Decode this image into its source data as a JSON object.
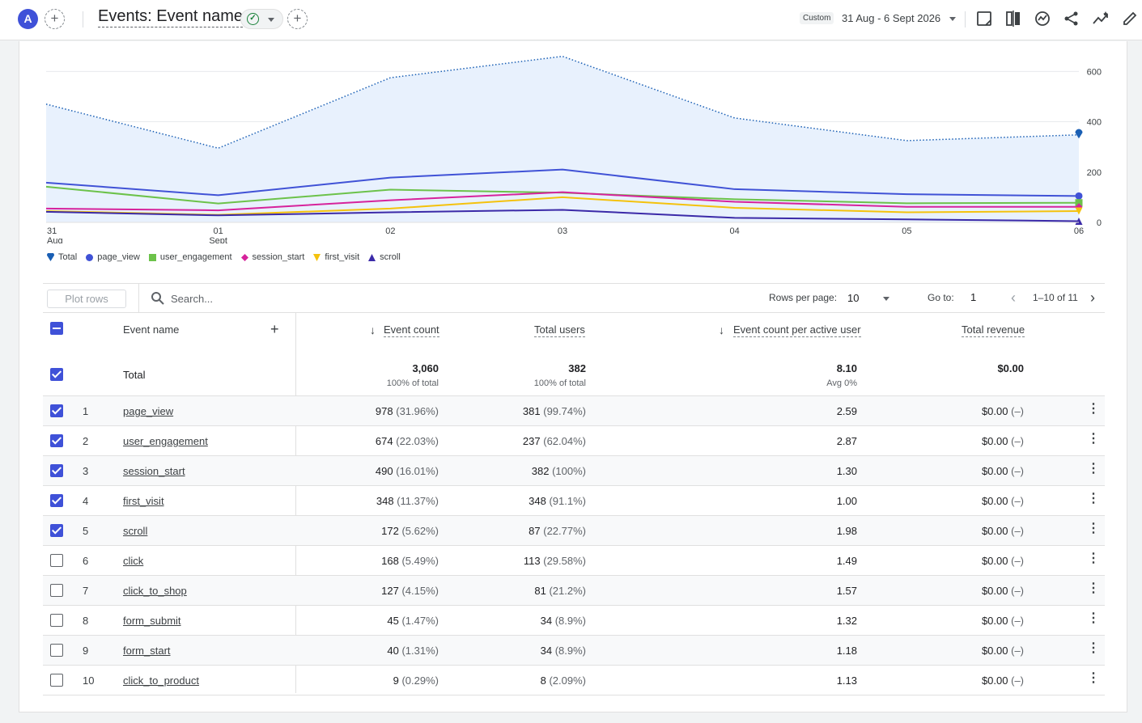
{
  "topbar": {
    "avatar_letter": "A",
    "add_comparison": "+",
    "title": "Events: Event name",
    "add_tab": "+",
    "date_chip": "Custom",
    "date_range": "31 Aug - 6 Sept 2026",
    "icons": [
      "report-notes-icon",
      "compare-icon",
      "insights-icon",
      "share-icon",
      "trending-icon",
      "edit-icon"
    ]
  },
  "chart_data": {
    "type": "line",
    "x": [
      "31 Aug",
      "01 Sept",
      "02",
      "03",
      "04",
      "05",
      "06"
    ],
    "x_tick_lines": [
      [
        "31",
        "Aug"
      ],
      [
        "01",
        "Sept"
      ],
      [
        "02"
      ],
      [
        "03"
      ],
      [
        "04"
      ],
      [
        "05"
      ],
      [
        "06"
      ]
    ],
    "y_ticks": [
      "0",
      "200",
      "400",
      "600"
    ],
    "ylim": [
      0,
      600
    ],
    "y_axis_side": "right",
    "grid": true,
    "legend_position": "bottom-left",
    "series": [
      {
        "name": "Total",
        "color": "#1a5fb4",
        "style": "dotted-area",
        "marker": "pin",
        "values": [
          470,
          295,
          575,
          660,
          415,
          325,
          348
        ]
      },
      {
        "name": "page_view",
        "color": "#4052d6",
        "style": "solid",
        "marker": "circle",
        "values": [
          158,
          108,
          178,
          210,
          132,
          112,
          105
        ]
      },
      {
        "name": "user_engagement",
        "color": "#6cc24a",
        "style": "solid",
        "marker": "square",
        "values": [
          142,
          75,
          130,
          118,
          92,
          76,
          78
        ]
      },
      {
        "name": "session_start",
        "color": "#d6239c",
        "style": "solid",
        "marker": "diamond",
        "values": [
          55,
          48,
          88,
          120,
          82,
          62,
          62
        ]
      },
      {
        "name": "first_visit",
        "color": "#f4c20d",
        "style": "solid",
        "marker": "triangle-down",
        "values": [
          45,
          30,
          55,
          100,
          58,
          40,
          45
        ]
      },
      {
        "name": "scroll",
        "color": "#3b2aa8",
        "style": "solid",
        "marker": "triangle-up",
        "values": [
          42,
          28,
          40,
          50,
          18,
          12,
          5
        ]
      }
    ]
  },
  "toolbar": {
    "plot_rows_label": "Plot rows",
    "search_placeholder": "Search...",
    "rows_per_page_label": "Rows per page:",
    "rows_per_page_value": "10",
    "goto_label": "Go to:",
    "goto_value": "1",
    "pagination": "1–10 of 11"
  },
  "table": {
    "dimension_header": "Event name",
    "metric_headers": [
      "Event count",
      "Total users",
      "Event count per active user",
      "Total revenue"
    ],
    "totals": {
      "label": "Total",
      "event_count": "3,060",
      "event_count_sub": "100% of total",
      "total_users": "382",
      "total_users_sub": "100% of total",
      "per_user": "8.10",
      "per_user_sub": "Avg 0%",
      "revenue": "$0.00"
    },
    "rows": [
      {
        "idx": "1",
        "name": "page_view",
        "count": "978",
        "count_pct": "(31.96%)",
        "users": "381",
        "users_pct": "(99.74%)",
        "per_user": "2.59",
        "revenue": "$0.00",
        "revenue_pct": "(–)",
        "checked": true
      },
      {
        "idx": "2",
        "name": "user_engagement",
        "count": "674",
        "count_pct": "(22.03%)",
        "users": "237",
        "users_pct": "(62.04%)",
        "per_user": "2.87",
        "revenue": "$0.00",
        "revenue_pct": "(–)",
        "checked": true
      },
      {
        "idx": "3",
        "name": "session_start",
        "count": "490",
        "count_pct": "(16.01%)",
        "users": "382",
        "users_pct": "(100%)",
        "per_user": "1.30",
        "revenue": "$0.00",
        "revenue_pct": "(–)",
        "checked": true
      },
      {
        "idx": "4",
        "name": "first_visit",
        "count": "348",
        "count_pct": "(11.37%)",
        "users": "348",
        "users_pct": "(91.1%)",
        "per_user": "1.00",
        "revenue": "$0.00",
        "revenue_pct": "(–)",
        "checked": true
      },
      {
        "idx": "5",
        "name": "scroll",
        "count": "172",
        "count_pct": "(5.62%)",
        "users": "87",
        "users_pct": "(22.77%)",
        "per_user": "1.98",
        "revenue": "$0.00",
        "revenue_pct": "(–)",
        "checked": true
      },
      {
        "idx": "6",
        "name": "click",
        "count": "168",
        "count_pct": "(5.49%)",
        "users": "113",
        "users_pct": "(29.58%)",
        "per_user": "1.49",
        "revenue": "$0.00",
        "revenue_pct": "(–)",
        "checked": false
      },
      {
        "idx": "7",
        "name": "click_to_shop",
        "count": "127",
        "count_pct": "(4.15%)",
        "users": "81",
        "users_pct": "(21.2%)",
        "per_user": "1.57",
        "revenue": "$0.00",
        "revenue_pct": "(–)",
        "checked": false
      },
      {
        "idx": "8",
        "name": "form_submit",
        "count": "45",
        "count_pct": "(1.47%)",
        "users": "34",
        "users_pct": "(8.9%)",
        "per_user": "1.32",
        "revenue": "$0.00",
        "revenue_pct": "(–)",
        "checked": false
      },
      {
        "idx": "9",
        "name": "form_start",
        "count": "40",
        "count_pct": "(1.31%)",
        "users": "34",
        "users_pct": "(8.9%)",
        "per_user": "1.18",
        "revenue": "$0.00",
        "revenue_pct": "(–)",
        "checked": false
      },
      {
        "idx": "10",
        "name": "click_to_product",
        "count": "9",
        "count_pct": "(0.29%)",
        "users": "8",
        "users_pct": "(2.09%)",
        "per_user": "1.13",
        "revenue": "$0.00",
        "revenue_pct": "(–)",
        "checked": false
      }
    ]
  }
}
